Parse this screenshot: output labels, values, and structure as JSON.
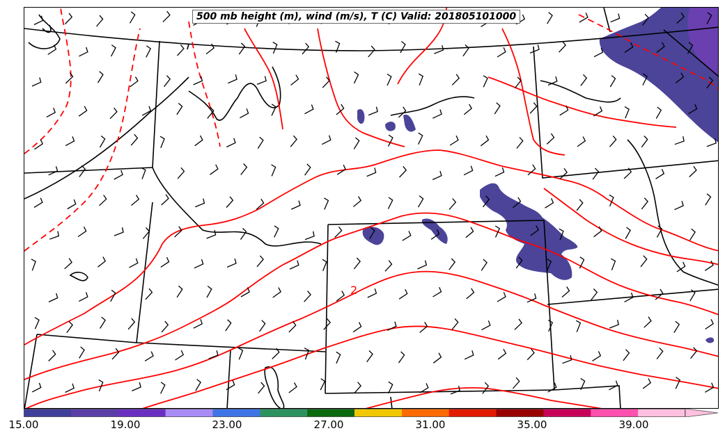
{
  "title": "500 mb height (m), wind (m/s), T (C) Valid: 201805101000",
  "contour_label": "2",
  "colorbar": {
    "colors": [
      "#3f3f9a",
      "#5a3ea6",
      "#6b2fc0",
      "#a98bf5",
      "#3f74e6",
      "#2e9160",
      "#0a6a10",
      "#f0c800",
      "#ff6a00",
      "#e21a00",
      "#990000",
      "#c8005a",
      "#ff50b0",
      "#ffc0e0"
    ],
    "tick_labels": [
      "15.00",
      "19.00",
      "23.00",
      "27.00",
      "31.00",
      "35.00",
      "39.00"
    ]
  },
  "colors": {
    "temperature_contour": "#ff0000",
    "borders": "#000000",
    "wind_barbs": "#000000",
    "shading": "#4b4499"
  }
}
